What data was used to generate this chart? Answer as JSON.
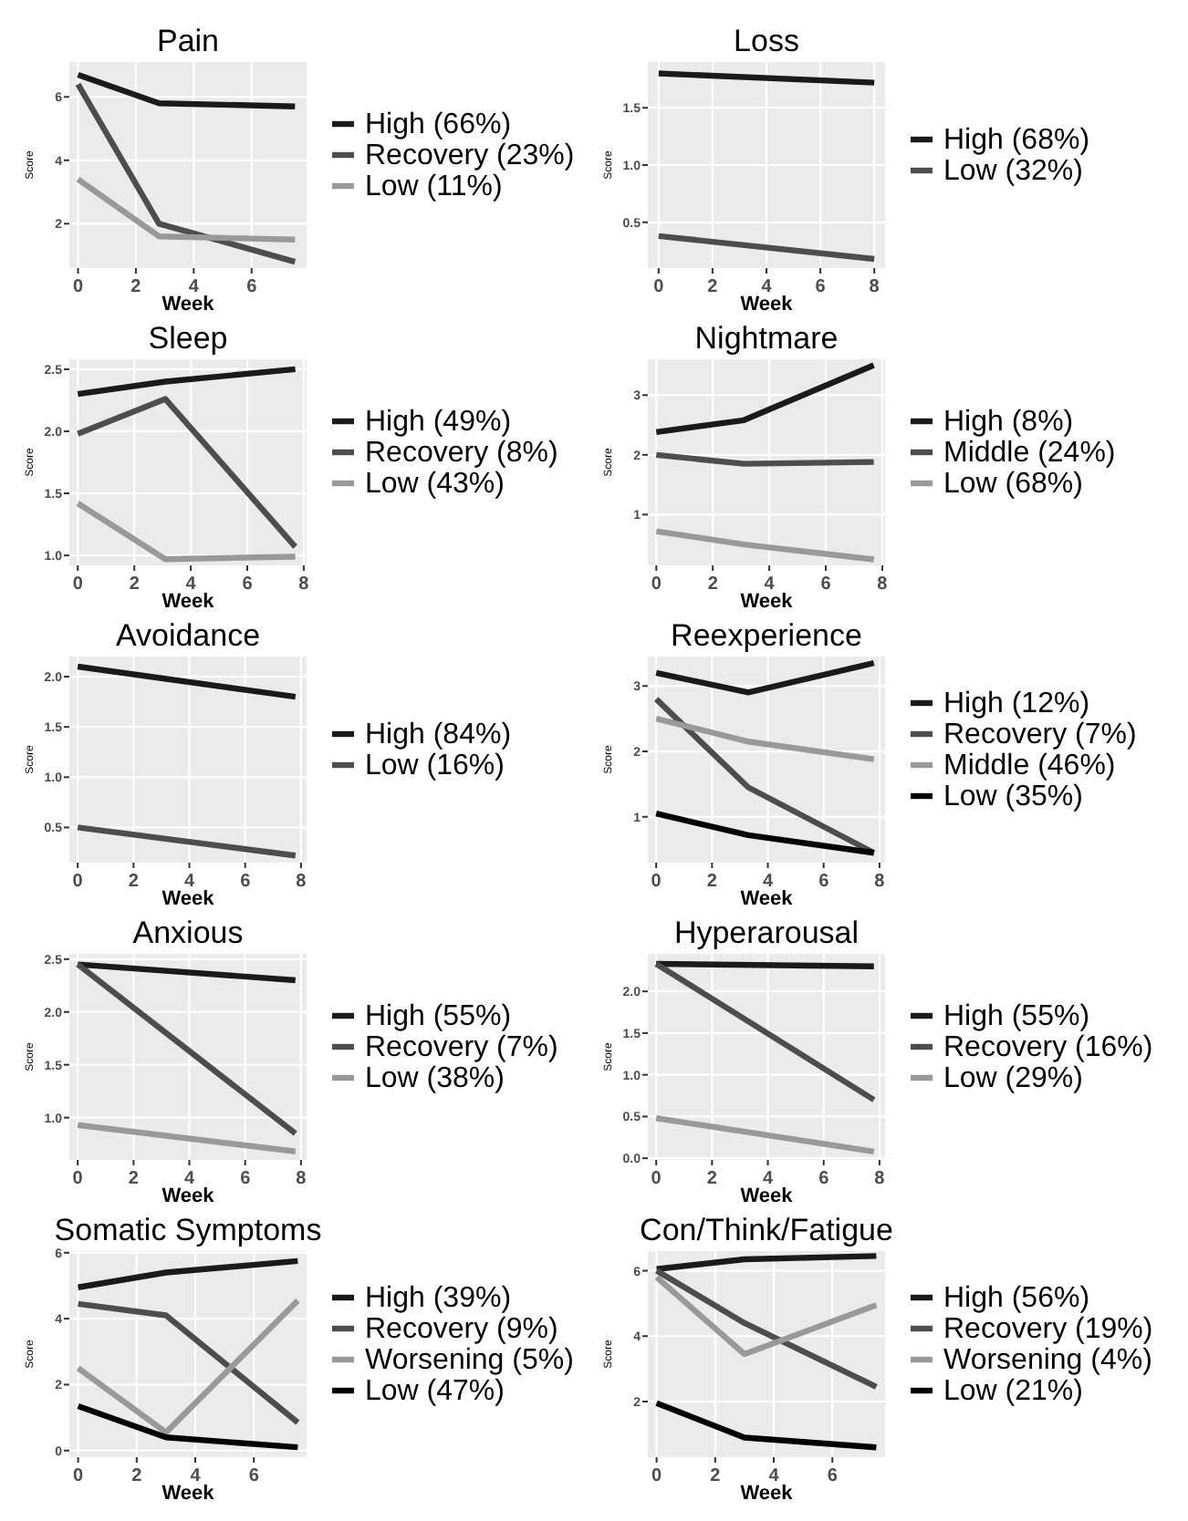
{
  "chart_data": [
    {
      "type": "line",
      "title": "Pain",
      "xlabel": "Week",
      "ylabel": "Score",
      "x": [
        0,
        2.8,
        7.5
      ],
      "xlim": [
        -0.3,
        7.9
      ],
      "xticks": [
        0,
        2,
        4,
        6
      ],
      "ylim": [
        0.6,
        7.1
      ],
      "yticks": [
        2,
        4,
        6
      ],
      "grid": true,
      "legend": "right",
      "series": [
        {
          "name": "High (66%)",
          "color": "#1a1a1a",
          "values": [
            6.7,
            5.8,
            5.7
          ]
        },
        {
          "name": "Recovery (23%)",
          "color": "#4d4d4d",
          "values": [
            6.4,
            2.0,
            0.8
          ]
        },
        {
          "name": "Low (11%)",
          "color": "#999999",
          "values": [
            3.4,
            1.6,
            1.5
          ]
        }
      ]
    },
    {
      "type": "line",
      "title": "Loss",
      "xlabel": "Week",
      "ylabel": "Score",
      "x": [
        0,
        8
      ],
      "xlim": [
        -0.4,
        8.4
      ],
      "xticks": [
        0,
        2,
        4,
        6,
        8
      ],
      "ylim": [
        0.1,
        1.9
      ],
      "yticks": [
        {
          "value": 0.5,
          "label": "0.5"
        },
        {
          "value": 1,
          "label": "1.0"
        },
        {
          "value": 1.5,
          "label": "1.5"
        }
      ],
      "grid": true,
      "legend": "right",
      "series": [
        {
          "name": "High (68%)",
          "color": "#1a1a1a",
          "values": [
            1.8,
            1.72
          ]
        },
        {
          "name": "Low (32%)",
          "color": "#4d4d4d",
          "values": [
            0.38,
            0.18
          ]
        }
      ]
    },
    {
      "type": "line",
      "title": "Sleep",
      "xlabel": "Week",
      "ylabel": "Score",
      "x": [
        0,
        3.1,
        7.7
      ],
      "xlim": [
        -0.3,
        8.1
      ],
      "xticks": [
        0,
        2,
        4,
        6,
        8
      ],
      "ylim": [
        0.92,
        2.58
      ],
      "yticks": [
        {
          "value": 1,
          "label": "1.0"
        },
        {
          "value": 1.5,
          "label": "1.5"
        },
        {
          "value": 2,
          "label": "2.0"
        },
        {
          "value": 2.5,
          "label": "2.5"
        }
      ],
      "grid": true,
      "legend": "right",
      "series": [
        {
          "name": "High (49%)",
          "color": "#1a1a1a",
          "values": [
            2.3,
            2.4,
            2.5
          ]
        },
        {
          "name": "Recovery (8%)",
          "color": "#4d4d4d",
          "values": [
            1.98,
            2.26,
            1.07
          ]
        },
        {
          "name": "Low (43%)",
          "color": "#999999",
          "values": [
            1.42,
            0.97,
            0.99
          ]
        }
      ]
    },
    {
      "type": "line",
      "title": "Nightmare",
      "xlabel": "Week",
      "ylabel": "Score",
      "x": [
        0,
        3.1,
        7.7
      ],
      "xlim": [
        -0.3,
        8.1
      ],
      "xticks": [
        0,
        2,
        4,
        6,
        8
      ],
      "ylim": [
        0.15,
        3.6
      ],
      "yticks": [
        1,
        2,
        3
      ],
      "grid": true,
      "legend": "right",
      "series": [
        {
          "name": "High (8%)",
          "color": "#1a1a1a",
          "values": [
            2.38,
            2.58,
            3.5
          ]
        },
        {
          "name": "Middle (24%)",
          "color": "#4d4d4d",
          "values": [
            2.0,
            1.85,
            1.88
          ]
        },
        {
          "name": "Low (68%)",
          "color": "#999999",
          "values": [
            0.72,
            0.5,
            0.25
          ]
        }
      ]
    },
    {
      "type": "line",
      "title": "Avoidance",
      "xlabel": "Week",
      "ylabel": "Score",
      "x": [
        0,
        7.8
      ],
      "xlim": [
        -0.3,
        8.2
      ],
      "xticks": [
        0,
        2,
        4,
        6,
        8
      ],
      "ylim": [
        0.15,
        2.2
      ],
      "yticks": [
        {
          "value": 0.5,
          "label": "0.5"
        },
        {
          "value": 1,
          "label": "1.0"
        },
        {
          "value": 1.5,
          "label": "1.5"
        },
        {
          "value": 2,
          "label": "2.0"
        }
      ],
      "grid": true,
      "legend": "right",
      "series": [
        {
          "name": "High (84%)",
          "color": "#1a1a1a",
          "values": [
            2.1,
            1.8
          ]
        },
        {
          "name": "Low (16%)",
          "color": "#4d4d4d",
          "values": [
            0.5,
            0.22
          ]
        }
      ]
    },
    {
      "type": "line",
      "title": "Reexperience",
      "xlabel": "Week",
      "ylabel": "Score",
      "x": [
        0,
        3.3,
        7.8
      ],
      "xlim": [
        -0.3,
        8.2
      ],
      "xticks": [
        0,
        2,
        4,
        6,
        8
      ],
      "ylim": [
        0.3,
        3.45
      ],
      "yticks": [
        1,
        2,
        3
      ],
      "grid": true,
      "legend": "right",
      "series": [
        {
          "name": "High (12%)",
          "color": "#1a1a1a",
          "values": [
            3.2,
            2.9,
            3.35
          ]
        },
        {
          "name": "Recovery (7%)",
          "color": "#4d4d4d",
          "values": [
            2.8,
            1.45,
            0.45
          ]
        },
        {
          "name": "Middle (46%)",
          "color": "#999999",
          "values": [
            2.5,
            2.15,
            1.88
          ]
        },
        {
          "name": "Low (35%)",
          "color": "#000000",
          "values": [
            1.05,
            0.72,
            0.45
          ]
        }
      ]
    },
    {
      "type": "line",
      "title": "Anxious",
      "xlabel": "Week",
      "ylabel": "Score",
      "x": [
        0,
        7.8
      ],
      "xlim": [
        -0.3,
        8.2
      ],
      "xticks": [
        0,
        2,
        4,
        6,
        8
      ],
      "ylim": [
        0.6,
        2.55
      ],
      "yticks": [
        {
          "value": 1,
          "label": "1.0"
        },
        {
          "value": 1.5,
          "label": "1.5"
        },
        {
          "value": 2,
          "label": "2.0"
        },
        {
          "value": 2.5,
          "label": "2.5"
        }
      ],
      "grid": true,
      "legend": "right",
      "series": [
        {
          "name": "High (55%)",
          "color": "#1a1a1a",
          "values": [
            2.45,
            2.3
          ]
        },
        {
          "name": "Recovery (7%)",
          "color": "#4d4d4d",
          "values": [
            2.45,
            0.85
          ]
        },
        {
          "name": "Low (38%)",
          "color": "#999999",
          "values": [
            0.93,
            0.68
          ]
        }
      ]
    },
    {
      "type": "line",
      "title": "Hyperarousal",
      "xlabel": "Week",
      "ylabel": "Score",
      "x": [
        0,
        7.8
      ],
      "xlim": [
        -0.3,
        8.2
      ],
      "xticks": [
        0,
        2,
        4,
        6,
        8
      ],
      "ylim": [
        -0.02,
        2.45
      ],
      "yticks": [
        {
          "value": 0,
          "label": "0.0"
        },
        {
          "value": 0.5,
          "label": "0.5"
        },
        {
          "value": 1,
          "label": "1.0"
        },
        {
          "value": 1.5,
          "label": "1.5"
        },
        {
          "value": 2,
          "label": "2.0"
        }
      ],
      "grid": true,
      "legend": "right",
      "series": [
        {
          "name": "High (55%)",
          "color": "#1a1a1a",
          "values": [
            2.33,
            2.3
          ]
        },
        {
          "name": "Recovery (16%)",
          "color": "#4d4d4d",
          "values": [
            2.33,
            0.7
          ]
        },
        {
          "name": "Low (29%)",
          "color": "#999999",
          "values": [
            0.48,
            0.08
          ]
        }
      ]
    },
    {
      "type": "line",
      "title": "Somatic Symptoms",
      "xlabel": "Week",
      "ylabel": "Score",
      "x": [
        0,
        3,
        7.5
      ],
      "xlim": [
        -0.3,
        7.8
      ],
      "xticks": [
        0,
        2,
        4,
        6
      ],
      "ylim": [
        -0.2,
        6.05
      ],
      "yticks": [
        0,
        2,
        4,
        6
      ],
      "grid": true,
      "legend": "right",
      "series": [
        {
          "name": "High (39%)",
          "color": "#1a1a1a",
          "values": [
            4.95,
            5.4,
            5.75
          ]
        },
        {
          "name": "Recovery (9%)",
          "color": "#4d4d4d",
          "values": [
            4.45,
            4.1,
            0.85
          ]
        },
        {
          "name": "Worsening (5%)",
          "color": "#999999",
          "values": [
            2.5,
            0.55,
            4.55
          ]
        },
        {
          "name": "Low (47%)",
          "color": "#000000",
          "values": [
            1.35,
            0.4,
            0.1
          ]
        }
      ]
    },
    {
      "type": "line",
      "title": "Con/Think/Fatigue",
      "xlabel": "Week",
      "ylabel": "Score",
      "x": [
        0,
        3,
        7.5
      ],
      "xlim": [
        -0.3,
        7.8
      ],
      "xticks": [
        0,
        2,
        4,
        6
      ],
      "ylim": [
        0.3,
        6.6
      ],
      "yticks": [
        2,
        4,
        6
      ],
      "grid": true,
      "legend": "right",
      "series": [
        {
          "name": "High (56%)",
          "color": "#1a1a1a",
          "values": [
            6.05,
            6.35,
            6.45
          ]
        },
        {
          "name": "Recovery (19%)",
          "color": "#4d4d4d",
          "values": [
            6.0,
            4.4,
            2.45
          ]
        },
        {
          "name": "Worsening (4%)",
          "color": "#999999",
          "values": [
            5.8,
            3.45,
            4.95
          ]
        },
        {
          "name": "Low (21%)",
          "color": "#000000",
          "values": [
            1.95,
            0.9,
            0.6
          ]
        }
      ]
    }
  ]
}
